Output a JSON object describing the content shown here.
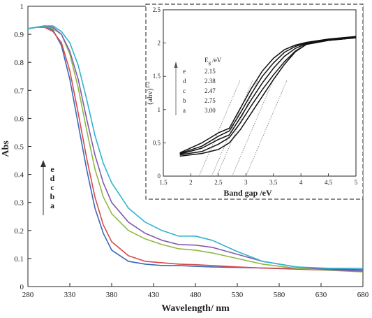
{
  "chart_data": [
    {
      "type": "line",
      "xlabel": "Wavelength/ nm",
      "ylabel": "Abs",
      "xlim": [
        280,
        680
      ],
      "ylim": [
        0,
        1
      ],
      "x_ticks": [
        "280",
        "330",
        "380",
        "430",
        "480",
        "530",
        "580",
        "630",
        "680"
      ],
      "y_ticks": [
        "0",
        "0.1",
        "0.2",
        "0.3",
        "0.4",
        "0.5",
        "0.6",
        "0.7",
        "0.8",
        "0.9",
        "1"
      ],
      "legend_arrow_labels": [
        "e",
        "d",
        "c",
        "b",
        "a"
      ],
      "series": [
        {
          "color": "#3a68b8",
          "x": [
            280,
            290,
            300,
            310,
            320,
            330,
            340,
            350,
            360,
            370,
            380,
            400,
            420,
            440,
            460,
            480,
            500,
            530,
            560,
            600,
            640,
            680
          ],
          "y": [
            0.92,
            0.925,
            0.93,
            0.915,
            0.86,
            0.74,
            0.58,
            0.42,
            0.28,
            0.19,
            0.13,
            0.09,
            0.08,
            0.075,
            0.075,
            0.072,
            0.07,
            0.068,
            0.066,
            0.064,
            0.062,
            0.06
          ]
        },
        {
          "color": "#d64a4a",
          "x": [
            280,
            290,
            300,
            310,
            320,
            330,
            340,
            350,
            360,
            370,
            380,
            400,
            420,
            440,
            460,
            480,
            500,
            530,
            560,
            600,
            640,
            680
          ],
          "y": [
            0.92,
            0.925,
            0.925,
            0.91,
            0.87,
            0.77,
            0.62,
            0.46,
            0.32,
            0.22,
            0.16,
            0.11,
            0.09,
            0.085,
            0.08,
            0.078,
            0.075,
            0.07,
            0.066,
            0.062,
            0.058,
            0.055
          ]
        },
        {
          "color": "#8db843",
          "x": [
            280,
            290,
            300,
            310,
            320,
            330,
            340,
            350,
            360,
            370,
            380,
            400,
            420,
            440,
            460,
            480,
            500,
            530,
            560,
            600,
            640,
            680
          ],
          "y": [
            0.92,
            0.925,
            0.93,
            0.92,
            0.9,
            0.83,
            0.71,
            0.56,
            0.42,
            0.32,
            0.26,
            0.2,
            0.17,
            0.15,
            0.135,
            0.13,
            0.12,
            0.1,
            0.08,
            0.065,
            0.058,
            0.052
          ]
        },
        {
          "color": "#8459ad",
          "x": [
            280,
            290,
            300,
            310,
            320,
            330,
            340,
            350,
            360,
            370,
            380,
            400,
            420,
            440,
            460,
            480,
            500,
            530,
            560,
            600,
            640,
            680
          ],
          "y": [
            0.92,
            0.925,
            0.93,
            0.925,
            0.9,
            0.84,
            0.74,
            0.6,
            0.47,
            0.37,
            0.3,
            0.23,
            0.19,
            0.165,
            0.15,
            0.148,
            0.14,
            0.115,
            0.09,
            0.07,
            0.06,
            0.055
          ]
        },
        {
          "color": "#2fb4cf",
          "x": [
            280,
            290,
            300,
            310,
            320,
            330,
            340,
            350,
            360,
            370,
            380,
            400,
            420,
            440,
            460,
            480,
            500,
            530,
            560,
            600,
            640,
            680
          ],
          "y": [
            0.92,
            0.925,
            0.93,
            0.93,
            0.91,
            0.87,
            0.79,
            0.67,
            0.54,
            0.44,
            0.37,
            0.28,
            0.23,
            0.2,
            0.18,
            0.18,
            0.165,
            0.125,
            0.09,
            0.07,
            0.065,
            0.065
          ]
        }
      ]
    },
    {
      "type": "line",
      "xlabel": "Band gap /eV",
      "ylabel": "(ahv)1/2",
      "xlim": [
        1.5,
        5
      ],
      "ylim": [
        0,
        2.5
      ],
      "x_ticks": [
        "1.5",
        "2",
        "2.5",
        "3",
        "3.5",
        "4",
        "4.5",
        "5"
      ],
      "y_ticks": [
        "0",
        "0.5",
        "1",
        "1.5",
        "2",
        "2.5"
      ],
      "table_header": "Eg /eV",
      "table_rows": [
        {
          "label": "e",
          "value": "2.15"
        },
        {
          "label": "d",
          "value": "2.38"
        },
        {
          "label": "c",
          "value": "2.47"
        },
        {
          "label": "b",
          "value": "2.75"
        },
        {
          "label": "a",
          "value": "3.00"
        }
      ],
      "series": [
        {
          "x": [
            1.8,
            2.2,
            2.5,
            2.7,
            2.9,
            3.1,
            3.3,
            3.5,
            3.7,
            3.9,
            4.1,
            4.5,
            5.0
          ],
          "y": [
            0.3,
            0.34,
            0.4,
            0.5,
            0.7,
            0.95,
            1.2,
            1.45,
            1.68,
            1.87,
            1.98,
            2.04,
            2.08
          ]
        },
        {
          "x": [
            1.8,
            2.2,
            2.5,
            2.7,
            2.9,
            3.1,
            3.3,
            3.5,
            3.7,
            3.9,
            4.1,
            4.5,
            5.0
          ],
          "y": [
            0.32,
            0.37,
            0.48,
            0.58,
            0.8,
            1.06,
            1.3,
            1.52,
            1.72,
            1.88,
            1.98,
            2.04,
            2.08
          ]
        },
        {
          "x": [
            1.8,
            2.2,
            2.5,
            2.7,
            2.9,
            3.1,
            3.3,
            3.5,
            3.7,
            3.9,
            4.1,
            4.5,
            5.0
          ],
          "y": [
            0.33,
            0.42,
            0.55,
            0.62,
            0.88,
            1.15,
            1.4,
            1.62,
            1.8,
            1.92,
            1.99,
            2.04,
            2.08
          ]
        },
        {
          "x": [
            1.8,
            2.2,
            2.5,
            2.7,
            2.9,
            3.1,
            3.3,
            3.5,
            3.7,
            3.9,
            4.1,
            4.5,
            5.0
          ],
          "y": [
            0.34,
            0.45,
            0.6,
            0.68,
            0.95,
            1.24,
            1.5,
            1.7,
            1.86,
            1.95,
            2.0,
            2.05,
            2.09
          ]
        },
        {
          "x": [
            1.8,
            2.2,
            2.5,
            2.7,
            2.9,
            3.1,
            3.3,
            3.5,
            3.7,
            3.9,
            4.1,
            4.5,
            5.0
          ],
          "y": [
            0.35,
            0.5,
            0.65,
            0.72,
            1.02,
            1.32,
            1.58,
            1.77,
            1.9,
            1.97,
            2.01,
            2.06,
            2.1
          ]
        }
      ],
      "tangent_intercepts_ev": [
        2.15,
        2.38,
        2.47,
        2.75,
        3.0
      ]
    }
  ]
}
